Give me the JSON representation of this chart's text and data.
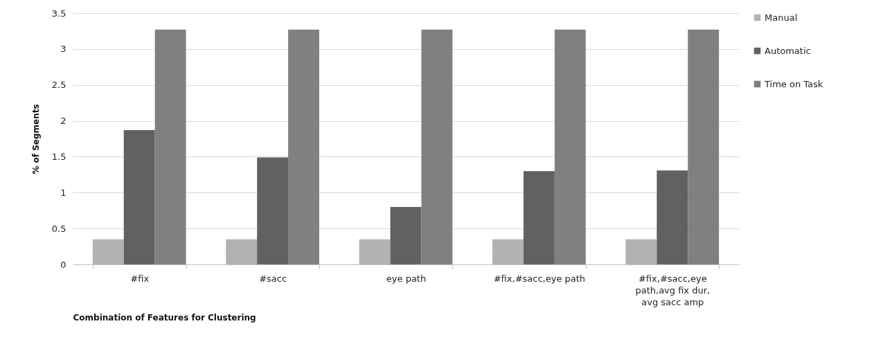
{
  "chart_data": {
    "type": "bar",
    "xlabel": "Combination of Features for Clustering",
    "ylabel": "% of Segments",
    "categories": [
      "#fix",
      "#sacc",
      "eye path",
      "#fix,#sacc,eye path",
      "#fix,#sacc,eye path,avg fix dur,avg sacc amp"
    ],
    "series": [
      {
        "name": "Manual",
        "color": "#b2b2b2",
        "values": [
          0.35,
          0.35,
          0.35,
          0.35,
          0.35
        ]
      },
      {
        "name": "Automatic",
        "color": "#616161",
        "values": [
          1.87,
          1.49,
          0.8,
          1.3,
          1.31
        ]
      },
      {
        "name": "Time on Task",
        "color": "#808080",
        "values": [
          3.27,
          3.27,
          3.27,
          3.27,
          3.27
        ]
      }
    ],
    "ylim": [
      0,
      3.5
    ],
    "yticks": [
      0,
      0.5,
      1,
      1.5,
      2,
      2.5,
      3,
      3.5
    ],
    "grid": "y",
    "legend": "right"
  }
}
